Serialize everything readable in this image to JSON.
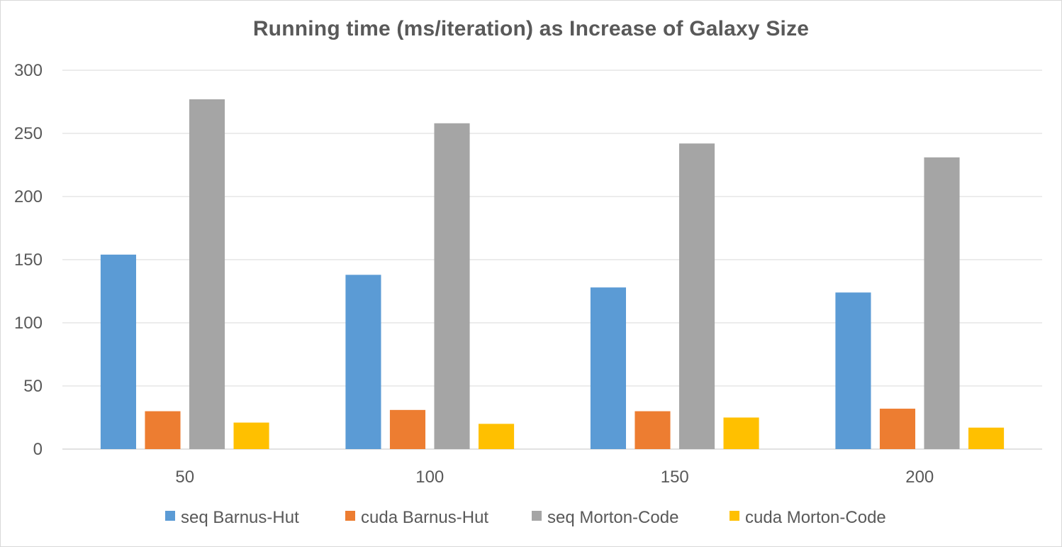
{
  "chart_data": {
    "type": "bar",
    "title": "Running time (ms/iteration) as Increase of  Galaxy Size",
    "xlabel": "",
    "ylabel": "",
    "categories": [
      "50",
      "100",
      "150",
      "200"
    ],
    "ylim": [
      0,
      300
    ],
    "yticks": [
      "0",
      "50",
      "100",
      "150",
      "200",
      "250",
      "300"
    ],
    "grid": true,
    "legend_position": "bottom",
    "series": [
      {
        "name": "seq Barnus-Hut",
        "color": "#5b9bd5",
        "values": [
          154,
          138,
          128,
          124
        ]
      },
      {
        "name": "cuda Barnus-Hut",
        "color": "#ed7d31",
        "values": [
          30,
          31,
          30,
          32
        ]
      },
      {
        "name": "seq Morton-Code",
        "color": "#a5a5a5",
        "values": [
          277,
          258,
          242,
          231
        ]
      },
      {
        "name": "cuda Morton-Code",
        "color": "#ffc000",
        "values": [
          21,
          20,
          25,
          17
        ]
      }
    ]
  }
}
